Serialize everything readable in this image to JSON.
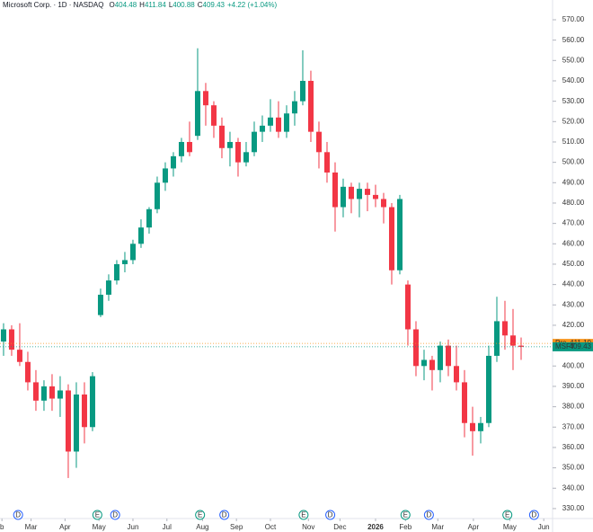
{
  "chart_data": {
    "type": "candlestick",
    "title": "Microsoft Corp. · 1D · NASDAQ",
    "legend_values": [
      {
        "prefix": "O",
        "value": 404.48
      },
      {
        "prefix": "H",
        "value": 411.84
      },
      {
        "prefix": "L",
        "value": 400.88
      },
      {
        "prefix": "C",
        "value": 409.43
      }
    ],
    "change": "+4.22 (+1.04%)",
    "up_color": "#089981",
    "down_color": "#f23645",
    "open": [
      412,
      418,
      408,
      402,
      392,
      383,
      390,
      384,
      388,
      358,
      386,
      370,
      425,
      435,
      442,
      450,
      452,
      460,
      468,
      477,
      490,
      497,
      503,
      510,
      513,
      535,
      528,
      518,
      507,
      510,
      500,
      505,
      515,
      518,
      522,
      515,
      524,
      530,
      540,
      515,
      505,
      495,
      478,
      488,
      482,
      487,
      484,
      482,
      478,
      447,
      440,
      418,
      400,
      403,
      398,
      410,
      400,
      392,
      372,
      368,
      372,
      405,
      422,
      415,
      410
    ],
    "high": [
      421,
      420,
      421,
      407,
      398,
      393,
      396,
      395,
      391,
      392,
      392,
      397,
      438,
      445,
      452,
      456,
      462,
      472,
      478,
      493,
      500,
      505,
      512,
      520,
      556,
      539,
      530,
      522,
      515,
      512,
      510,
      520,
      523,
      531,
      530,
      528,
      535,
      555,
      545,
      520,
      510,
      500,
      492,
      490,
      490,
      490,
      489,
      485,
      480,
      484,
      442,
      422,
      408,
      405,
      412,
      413,
      410,
      398,
      380,
      375,
      410,
      434,
      432,
      428,
      414
    ],
    "low": [
      405,
      405,
      400,
      388,
      378,
      378,
      378,
      375,
      345,
      350,
      362,
      368,
      424,
      432,
      440,
      446,
      450,
      458,
      465,
      475,
      486,
      493,
      500,
      503,
      511,
      518,
      512,
      502,
      498,
      493,
      498,
      503,
      510,
      515,
      512,
      512,
      518,
      528,
      510,
      497,
      490,
      466,
      473,
      475,
      473,
      476,
      478,
      470,
      440,
      445,
      410,
      395,
      393,
      388,
      392,
      395,
      388,
      365,
      356,
      362,
      370,
      402,
      408,
      398,
      403
    ],
    "close": [
      418,
      408,
      402,
      392,
      383,
      390,
      384,
      388,
      358,
      386,
      370,
      395,
      435,
      442,
      450,
      452,
      460,
      468,
      477,
      490,
      497,
      503,
      510,
      505,
      535,
      528,
      518,
      507,
      510,
      500,
      505,
      515,
      518,
      522,
      515,
      524,
      530,
      540,
      515,
      505,
      495,
      478,
      488,
      482,
      487,
      484,
      482,
      478,
      447,
      482,
      418,
      400,
      403,
      398,
      410,
      400,
      392,
      372,
      368,
      372,
      405,
      422,
      415,
      410,
      409.43
    ],
    "xlim": [
      -0.44,
      72.89
    ],
    "xticks": [
      {
        "value": -0.2,
        "label": "b"
      },
      {
        "value": 3.4,
        "label": "Mar"
      },
      {
        "value": 7.6,
        "label": "Apr"
      },
      {
        "value": 11.8,
        "label": "May"
      },
      {
        "value": 16,
        "label": "Jun"
      },
      {
        "value": 20.2,
        "label": "Jul"
      },
      {
        "value": 24.6,
        "label": "Aug"
      },
      {
        "value": 28.8,
        "label": "Sep"
      },
      {
        "value": 33,
        "label": "Oct"
      },
      {
        "value": 37.7,
        "label": "Nov"
      },
      {
        "value": 41.6,
        "label": "Dec"
      },
      {
        "value": 46,
        "label": "2026"
      },
      {
        "value": 49.7,
        "label": "Feb"
      },
      {
        "value": 53.7,
        "label": "Mar"
      },
      {
        "value": 58.1,
        "label": "Apr"
      },
      {
        "value": 62.6,
        "label": "May"
      },
      {
        "value": 66.8,
        "label": "Jun"
      }
    ],
    "ylim": [
      326,
      579.7
    ],
    "yticks": [
      {
        "value": 330,
        "label": "330.00"
      },
      {
        "value": 340,
        "label": "340.00"
      },
      {
        "value": 350,
        "label": "350.00"
      },
      {
        "value": 360,
        "label": "360.00"
      },
      {
        "value": 370,
        "label": "370.00"
      },
      {
        "value": 380,
        "label": "380.00"
      },
      {
        "value": 390,
        "label": "390.00"
      },
      {
        "value": 400,
        "label": "400.00"
      },
      {
        "value": 410,
        "label": "410.00"
      },
      {
        "value": 420,
        "label": "420.00"
      },
      {
        "value": 430,
        "label": "430.00"
      },
      {
        "value": 440,
        "label": "440.00"
      },
      {
        "value": 450,
        "label": "450.00"
      },
      {
        "value": 460,
        "label": "460.00"
      },
      {
        "value": 470,
        "label": "470.00"
      },
      {
        "value": 480,
        "label": "480.00"
      },
      {
        "value": 490,
        "label": "490.00"
      },
      {
        "value": 500,
        "label": "500.00"
      },
      {
        "value": 510,
        "label": "510.00"
      },
      {
        "value": 520,
        "label": "520.00"
      },
      {
        "value": 530,
        "label": "530.00"
      },
      {
        "value": 540,
        "label": "540.00"
      },
      {
        "value": 550,
        "label": "550.00"
      },
      {
        "value": 560,
        "label": "560.00"
      },
      {
        "value": 570,
        "label": "570.00"
      }
    ],
    "price_labels": [
      {
        "name": "Pre",
        "price": {
          "value": 411.1,
          "label": "411.10"
        },
        "color": "#f7931a"
      },
      {
        "name": "MSFT",
        "price": 409.43,
        "color": "#089981"
      }
    ],
    "events": [
      {
        "label": "D",
        "x": 1.8,
        "color": "#2962ff"
      },
      {
        "label": "E",
        "x": 11.6,
        "color": "#089981"
      },
      {
        "label": "D",
        "x": 13.8,
        "color": "#2962ff"
      },
      {
        "label": "E",
        "x": 24.3,
        "color": "#089981"
      },
      {
        "label": "D",
        "x": 27.3,
        "color": "#2962ff"
      },
      {
        "label": "E",
        "x": 37.1,
        "color": "#089981"
      },
      {
        "label": "D",
        "x": 40.4,
        "color": "#2962ff"
      },
      {
        "label": "E",
        "x": 49.7,
        "color": "#089981"
      },
      {
        "label": "D",
        "x": 52.6,
        "color": "#2962ff"
      },
      {
        "label": "E",
        "x": 62.3,
        "color": "#089981"
      },
      {
        "label": "D",
        "x": 65.6,
        "color": "#2962ff"
      }
    ]
  }
}
